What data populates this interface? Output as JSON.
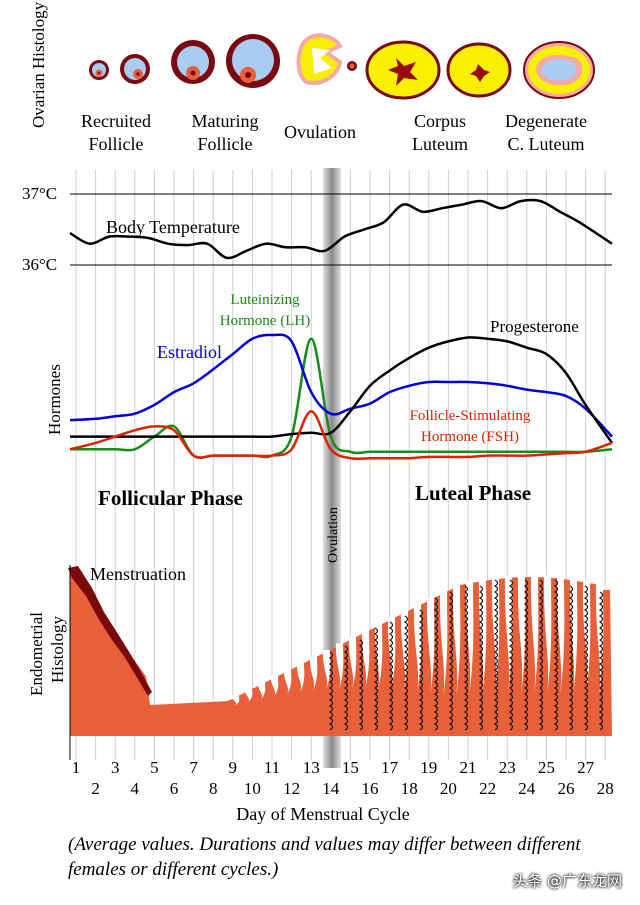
{
  "ovarian": {
    "row_label": "Ovarian Histology",
    "stages": [
      {
        "line1": "Recruited",
        "line2": "Follicle"
      },
      {
        "line1": "Maturing",
        "line2": "Follicle"
      },
      {
        "line1": "Ovulation",
        "line2": ""
      },
      {
        "line1": "Corpus",
        "line2": "Luteum"
      },
      {
        "line1": "Degenerate",
        "line2": "C. Luteum"
      }
    ]
  },
  "temperature": {
    "label": "Body Temperature",
    "tick_high": "37°C",
    "tick_low": "36°C",
    "range_c": [
      36,
      37
    ],
    "days": [
      1,
      2,
      3,
      4,
      5,
      6,
      7,
      8,
      9,
      10,
      11,
      12,
      13,
      14,
      15,
      16,
      17,
      18,
      19,
      20,
      21,
      22,
      23,
      24,
      25,
      26,
      27,
      28
    ],
    "values_c": [
      36.45,
      36.3,
      36.4,
      36.4,
      36.38,
      36.3,
      36.28,
      36.3,
      36.1,
      36.2,
      36.3,
      36.25,
      36.25,
      36.2,
      36.4,
      36.5,
      36.6,
      36.85,
      36.75,
      36.8,
      36.85,
      36.9,
      36.8,
      36.9,
      36.9,
      36.75,
      36.6,
      36.3
    ],
    "color": "#000000"
  },
  "hormones": {
    "row_label": "Hormones",
    "series": [
      {
        "key": "lh",
        "name_line1": "Luteinizing",
        "name_line2": "Hormone (LH)",
        "color": "#1a8a1a",
        "values": [
          0.1,
          0.1,
          0.1,
          0.1,
          0.2,
          0.28,
          0.05,
          0.05,
          0.05,
          0.05,
          0.05,
          0.2,
          0.97,
          0.2,
          0.08,
          0.08,
          0.08,
          0.08,
          0.08,
          0.08,
          0.08,
          0.08,
          0.08,
          0.08,
          0.08,
          0.08,
          0.08,
          0.1
        ]
      },
      {
        "key": "estradiol",
        "name_line1": "Estradiol",
        "name_line2": "",
        "color": "#0000dd",
        "values": [
          0.33,
          0.34,
          0.36,
          0.38,
          0.45,
          0.55,
          0.62,
          0.73,
          0.85,
          0.97,
          1.0,
          0.95,
          0.55,
          0.38,
          0.42,
          0.46,
          0.55,
          0.6,
          0.63,
          0.63,
          0.63,
          0.62,
          0.6,
          0.57,
          0.55,
          0.52,
          0.42,
          0.2
        ]
      },
      {
        "key": "progesterone",
        "name_line1": "Progesterone",
        "name_line2": "",
        "color": "#000000",
        "values": [
          0.2,
          0.2,
          0.2,
          0.2,
          0.2,
          0.2,
          0.2,
          0.2,
          0.2,
          0.2,
          0.2,
          0.22,
          0.23,
          0.23,
          0.4,
          0.6,
          0.72,
          0.82,
          0.9,
          0.95,
          0.98,
          0.97,
          0.95,
          0.9,
          0.85,
          0.7,
          0.45,
          0.15
        ]
      },
      {
        "key": "fsh",
        "name_line1": "Follicle-Stimulating",
        "name_line2": "Hormone (FSH)",
        "color": "#dd2200",
        "values": [
          0.1,
          0.15,
          0.2,
          0.25,
          0.28,
          0.25,
          0.05,
          0.05,
          0.05,
          0.05,
          0.05,
          0.1,
          0.4,
          0.1,
          0.03,
          0.03,
          0.03,
          0.03,
          0.04,
          0.04,
          0.04,
          0.05,
          0.05,
          0.05,
          0.06,
          0.07,
          0.08,
          0.15
        ]
      }
    ]
  },
  "phases": {
    "follicular": "Follicular Phase",
    "luteal": "Luteal Phase",
    "ovulation": "Ovulation"
  },
  "endometrium": {
    "row_label": "Endometrial Histology",
    "menstruation_label": "Menstruation",
    "color": "#e8603a",
    "dark_color": "#7a0a0a"
  },
  "xaxis": {
    "label": "Day of Menstrual Cycle",
    "odd_days": [
      "1",
      "3",
      "5",
      "7",
      "9",
      "11",
      "13",
      "15",
      "17",
      "19",
      "21",
      "23",
      "25",
      "27"
    ],
    "even_days": [
      "2",
      "4",
      "6",
      "8",
      "10",
      "12",
      "14",
      "16",
      "18",
      "20",
      "22",
      "24",
      "26",
      "28"
    ]
  },
  "caption": "(Average values. Durations and values may differ between different females or different cycles.)",
  "watermark": "头条 @广东龙网"
}
